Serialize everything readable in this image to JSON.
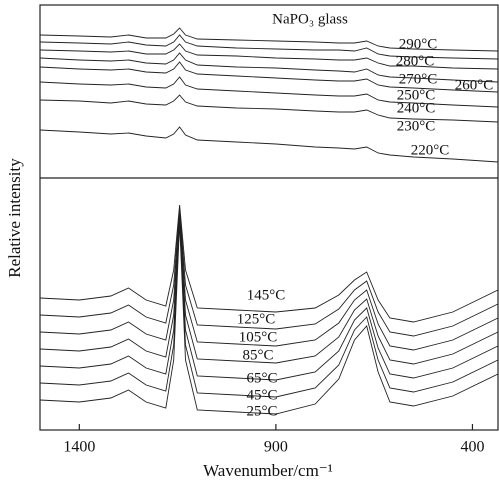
{
  "chart_data": [
    {
      "type": "line",
      "annotation": "NaPO₃ glass",
      "x": [
        1500,
        1400,
        1320,
        1275,
        1230,
        1180,
        1160,
        1145,
        1130,
        1100,
        1000,
        900,
        800,
        740,
        700,
        669,
        640,
        610,
        550,
        450,
        335
      ],
      "xlim": [
        1500,
        335
      ],
      "ylim": [
        0,
        173
      ],
      "series": [
        {
          "name": "290°C",
          "color": "#222",
          "values": [
            143,
            142,
            141,
            143,
            140,
            140,
            144,
            150,
            143,
            139,
            138,
            137,
            136,
            135,
            135,
            137,
            132,
            130,
            129,
            128,
            127
          ]
        },
        {
          "name": "280°C",
          "color": "#222",
          "values": [
            136,
            135,
            134,
            136,
            133,
            132,
            136,
            143,
            136,
            132,
            130,
            129,
            128,
            128,
            127,
            130,
            124,
            122,
            121,
            120,
            119
          ]
        },
        {
          "name": "270°C",
          "color": "#222",
          "values": [
            128,
            127,
            126,
            127,
            124,
            124,
            128,
            134,
            127,
            123,
            122,
            120,
            119,
            118,
            118,
            120,
            115,
            112,
            112,
            110,
            109
          ]
        },
        {
          "name": "260°C",
          "color": "#222",
          "values": [
            120,
            118,
            117,
            118,
            115,
            114,
            118,
            125,
            118,
            113,
            111,
            110,
            108,
            107,
            106,
            109,
            103,
            101,
            100,
            98,
            96
          ]
        },
        {
          "name": "250°C",
          "color": "#222",
          "values": [
            111,
            109,
            108,
            109,
            106,
            105,
            109,
            116,
            108,
            104,
            102,
            100,
            98,
            97,
            97,
            99,
            93,
            91,
            90,
            88,
            86
          ]
        },
        {
          "name": "240°C",
          "color": "#222",
          "values": [
            96,
            94,
            93,
            94,
            91,
            90,
            94,
            101,
            93,
            89,
            87,
            85,
            83,
            82,
            82,
            84,
            78,
            76,
            75,
            73,
            71
          ]
        },
        {
          "name": "230°C",
          "color": "#222",
          "values": [
            78,
            77,
            75,
            77,
            74,
            73,
            77,
            83,
            76,
            72,
            70,
            69,
            67,
            66,
            66,
            68,
            63,
            60,
            59,
            58,
            56
          ]
        },
        {
          "name": "220°C",
          "color": "#222",
          "values": [
            48,
            46,
            44,
            45,
            42,
            40,
            44,
            51,
            43,
            38,
            36,
            34,
            31,
            30,
            29,
            31,
            25,
            23,
            21,
            19,
            16
          ]
        }
      ]
    },
    {
      "type": "line",
      "xlabel": "Wavenumber/cm⁻¹",
      "ylabel": "Relative intensity",
      "x": [
        1500,
        1400,
        1320,
        1275,
        1230,
        1180,
        1160,
        1145,
        1130,
        1100,
        1000,
        900,
        800,
        740,
        700,
        669,
        640,
        610,
        550,
        450,
        335
      ],
      "xlim": [
        1500,
        335
      ],
      "xticks": [
        1400,
        900,
        400
      ],
      "ylim": [
        0,
        252
      ],
      "series": [
        {
          "name": "145°C",
          "color": "#222",
          "values": [
            132,
            130,
            134,
            142,
            130,
            124,
            160,
            225,
            160,
            122,
            120,
            118,
            122,
            135,
            150,
            158,
            130,
            112,
            108,
            118,
            140
          ]
        },
        {
          "name": "125°C",
          "color": "#222",
          "values": [
            115,
            113,
            117,
            125,
            113,
            107,
            145,
            222,
            145,
            105,
            103,
            101,
            106,
            121,
            140,
            149,
            118,
            98,
            94,
            104,
            126
          ]
        },
        {
          "name": "105°C",
          "color": "#222",
          "values": [
            98,
            96,
            100,
            108,
            96,
            90,
            130,
            219,
            130,
            88,
            86,
            84,
            90,
            107,
            130,
            140,
            106,
            84,
            80,
            90,
            112
          ]
        },
        {
          "name": "85°C",
          "color": "#222",
          "values": [
            81,
            79,
            83,
            91,
            79,
            73,
            115,
            216,
            115,
            71,
            69,
            67,
            74,
            93,
            120,
            131,
            94,
            70,
            66,
            76,
            98
          ]
        },
        {
          "name": "65°C",
          "color": "#222",
          "values": [
            64,
            62,
            66,
            74,
            62,
            56,
            100,
            213,
            100,
            54,
            52,
            50,
            58,
            79,
            110,
            122,
            82,
            56,
            52,
            62,
            84
          ]
        },
        {
          "name": "45°C",
          "color": "#222",
          "values": [
            47,
            45,
            49,
            57,
            45,
            39,
            85,
            210,
            85,
            37,
            35,
            33,
            42,
            65,
            100,
            113,
            70,
            42,
            38,
            48,
            70
          ]
        },
        {
          "name": "25°C",
          "color": "#222",
          "values": [
            30,
            28,
            32,
            40,
            28,
            22,
            70,
            207,
            70,
            20,
            18,
            16,
            26,
            51,
            90,
            104,
            58,
            28,
            24,
            34,
            56
          ]
        }
      ]
    }
  ]
}
